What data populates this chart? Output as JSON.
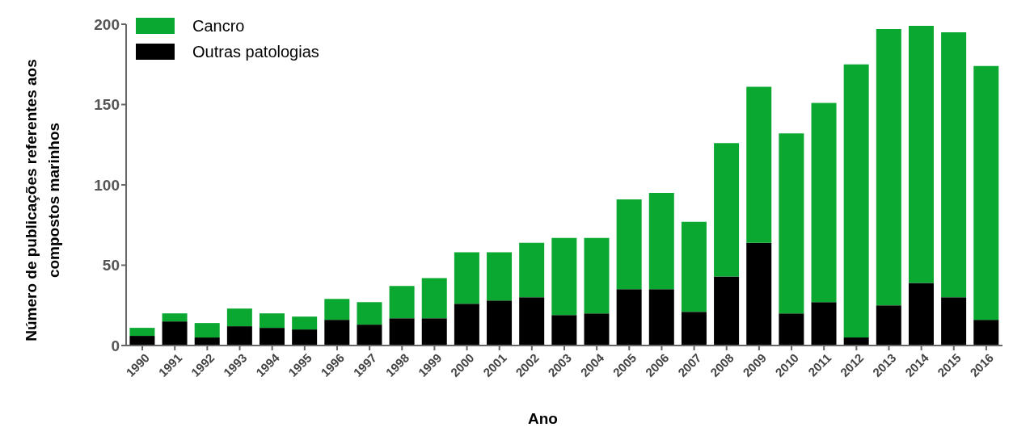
{
  "chart_data": {
    "type": "bar",
    "stacked": true,
    "xlabel": "Ano",
    "ylabel": "Número de publicações referentes aos compostos marinhos",
    "categories": [
      "1990",
      "1991",
      "1992",
      "1993",
      "1994",
      "1995",
      "1996",
      "1997",
      "1998",
      "1999",
      "2000",
      "2001",
      "2002",
      "2003",
      "2004",
      "2005",
      "2006",
      "2007",
      "2008",
      "2009",
      "2010",
      "2011",
      "2012",
      "2013",
      "2014",
      "2015",
      "2016"
    ],
    "series": [
      {
        "name": "Outras patologias",
        "color": "#000000",
        "values": [
          6,
          15,
          5,
          12,
          11,
          10,
          16,
          13,
          17,
          17,
          26,
          28,
          30,
          19,
          20,
          35,
          35,
          21,
          43,
          64,
          20,
          27,
          5,
          25,
          39,
          30,
          16
        ]
      },
      {
        "name": "Cancro",
        "color": "#0aa830",
        "values": [
          5,
          5,
          9,
          11,
          9,
          8,
          13,
          14,
          20,
          25,
          32,
          30,
          34,
          48,
          47,
          56,
          60,
          56,
          83,
          97,
          112,
          124,
          170,
          172,
          160,
          165,
          158
        ]
      }
    ],
    "ylim": [
      0,
      200
    ],
    "yticks": [
      0,
      50,
      100,
      150,
      200
    ],
    "grid": false,
    "legend": "top left"
  }
}
